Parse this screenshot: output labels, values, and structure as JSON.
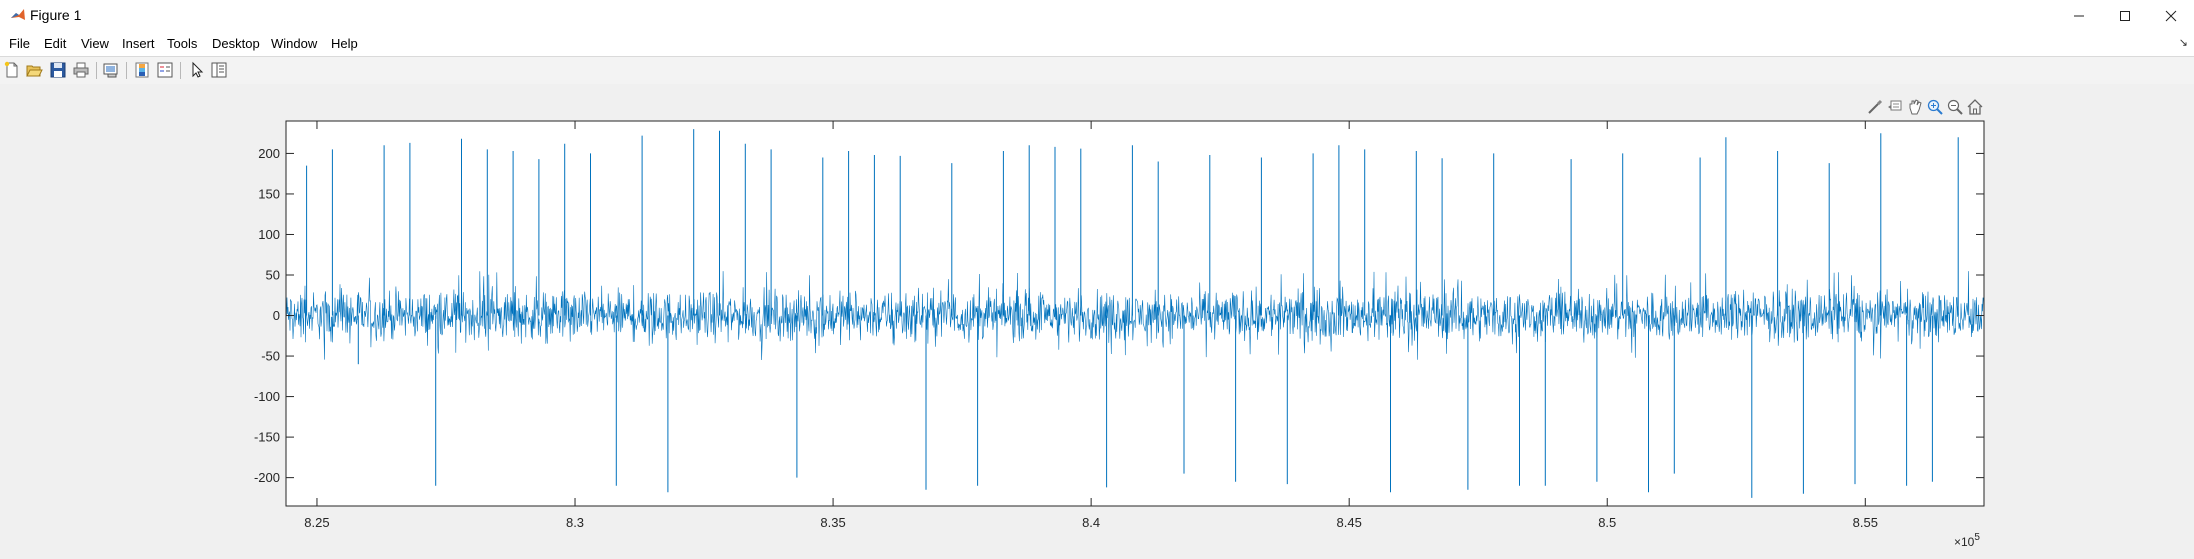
{
  "window": {
    "title": "Figure 1",
    "controls": [
      "minimize",
      "maximize",
      "close"
    ]
  },
  "menu": {
    "items": [
      "File",
      "Edit",
      "View",
      "Insert",
      "Tools",
      "Desktop",
      "Window",
      "Help"
    ]
  },
  "toolbar": {
    "buttons": [
      "new-figure-icon",
      "open-file-icon",
      "save-icon",
      "print-icon",
      "link-plot-icon",
      "colorbar-icon",
      "legend-icon",
      "edit-plot-icon",
      "property-inspector-icon"
    ]
  },
  "axes_toolbar": {
    "buttons": [
      "brush-icon",
      "datatip-icon",
      "pan-icon",
      "zoom-in-icon",
      "zoom-out-icon",
      "home-icon"
    ]
  },
  "colors": {
    "line": "#0072bd",
    "axes_bg": "#ffffff",
    "figure_bg": "#f0f0f0"
  },
  "chart_data": {
    "type": "line",
    "title": "",
    "xlabel": "",
    "ylabel": "",
    "x_exponent_label": "×10",
    "x_exponent_power": "5",
    "xlim": [
      824400,
      857300
    ],
    "ylim": [
      -235,
      240
    ],
    "xticks": [
      825000,
      830000,
      835000,
      840000,
      845000,
      850000,
      855000
    ],
    "xtick_labels": [
      "8.25",
      "8.3",
      "8.35",
      "8.4",
      "8.45",
      "8.5",
      "8.55"
    ],
    "yticks": [
      200,
      150,
      100,
      50,
      0,
      -50,
      -100,
      -150,
      -200
    ],
    "ytick_labels": [
      "200",
      "150",
      "100",
      "50",
      "0",
      "-50",
      "-100",
      "-150",
      "-200"
    ],
    "grid": false,
    "legend": "none",
    "noise_band": {
      "mean": 0,
      "typical_amplitude": 25,
      "peak_amplitude": 55
    },
    "spikes": {
      "x": [
        824800,
        825300,
        825800,
        826300,
        826800,
        827300,
        827800,
        828300,
        828800,
        829300,
        829800,
        830300,
        830800,
        831300,
        831800,
        832300,
        832800,
        833300,
        833800,
        834300,
        834800,
        835300,
        835800,
        836300,
        836800,
        837300,
        837800,
        838300,
        838800,
        839300,
        839800,
        840300,
        840800,
        841300,
        841800,
        842300,
        842800,
        843300,
        843800,
        844300,
        844800,
        845300,
        845800,
        846300,
        846800,
        847300,
        847800,
        848300,
        848800,
        849300,
        849800,
        850300,
        850800,
        851300,
        851800,
        852300,
        852800,
        853300,
        853800,
        854300,
        854800,
        855300,
        855800,
        856300,
        856800
      ],
      "y": [
        185,
        205,
        -60,
        210,
        213,
        -210,
        218,
        205,
        203,
        193,
        212,
        200,
        -210,
        222,
        -218,
        230,
        228,
        212,
        205,
        -200,
        195,
        203,
        198,
        197,
        -215,
        188,
        -210,
        203,
        210,
        208,
        206,
        -212,
        210,
        190,
        -195,
        198,
        -205,
        195,
        -208,
        200,
        210,
        205,
        -218,
        203,
        194,
        -215,
        200,
        -210,
        -210,
        193,
        -205,
        200,
        -218,
        -195,
        195,
        220,
        -225,
        203,
        -220,
        188,
        -208,
        225,
        -210,
        -205,
        220
      ]
    }
  }
}
